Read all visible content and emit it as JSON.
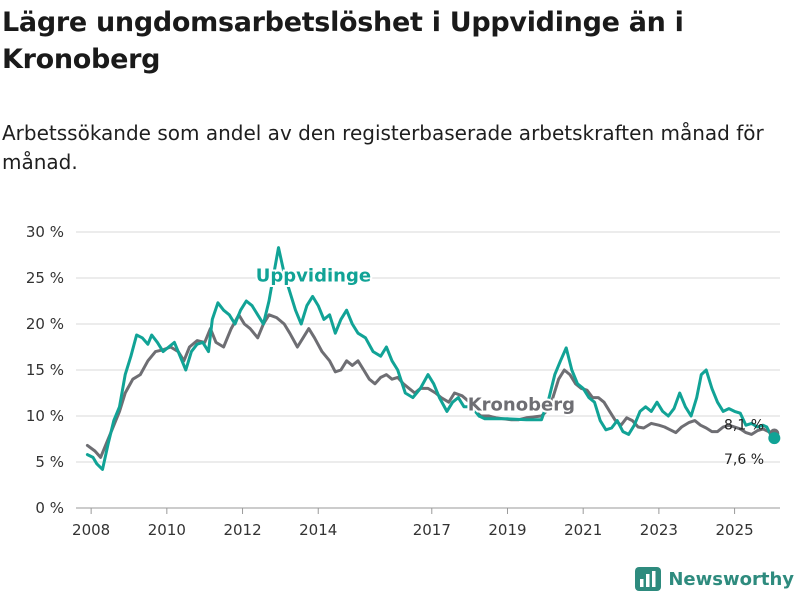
{
  "header": {
    "title": "Lägre ungdomsarbetslöshet i Uppvidinge än i Kronoberg",
    "subtitle": "Arbetssökande som andel av den registerbaserade arbetskraften månad för månad."
  },
  "brand": {
    "name": "Newsworthy",
    "icon": "bar-chart-logo-icon",
    "color": "#2e8b7e"
  },
  "chart_data": {
    "type": "line",
    "title": "Lägre ungdomsarbetslöshet i Uppvidinge än i Kronoberg",
    "subtitle": "Arbetssökande som andel av den registerbaserade arbetskraften månad för månad.",
    "xlabel": "",
    "ylabel": "",
    "ylim": [
      0,
      30
    ],
    "xlim": [
      2007.6,
      2026.2
    ],
    "grid": true,
    "y_ticks": [
      0,
      5,
      10,
      15,
      20,
      25,
      30
    ],
    "y_tick_labels": [
      "0 %",
      "5 %",
      "10 %",
      "15 %",
      "20 %",
      "25 %",
      "30 %"
    ],
    "x_ticks": [
      2008,
      2010,
      2012,
      2014,
      2017,
      2019,
      2021,
      2023,
      2025
    ],
    "x_tick_labels": [
      "2008",
      "2010",
      "2012",
      "2014",
      "2017",
      "2019",
      "2021",
      "2023",
      "2025"
    ],
    "series": [
      {
        "name": "Kronoberg",
        "color": "#6e6e73",
        "label": "Kronoberg",
        "end_label": "8,1 %",
        "points": [
          [
            2007.9,
            6.8
          ],
          [
            2008.1,
            6.2
          ],
          [
            2008.25,
            5.5
          ],
          [
            2008.4,
            7.0
          ],
          [
            2008.55,
            8.5
          ],
          [
            2008.75,
            10.5
          ],
          [
            2008.9,
            12.5
          ],
          [
            2009.1,
            14.0
          ],
          [
            2009.3,
            14.5
          ],
          [
            2009.5,
            16.0
          ],
          [
            2009.7,
            17.0
          ],
          [
            2009.9,
            17.2
          ],
          [
            2010.1,
            17.5
          ],
          [
            2010.3,
            17.0
          ],
          [
            2010.45,
            16.0
          ],
          [
            2010.6,
            17.5
          ],
          [
            2010.8,
            18.2
          ],
          [
            2011.0,
            18.0
          ],
          [
            2011.15,
            19.5
          ],
          [
            2011.3,
            18.0
          ],
          [
            2011.5,
            17.5
          ],
          [
            2011.7,
            19.5
          ],
          [
            2011.9,
            21.0
          ],
          [
            2012.05,
            20.0
          ],
          [
            2012.2,
            19.5
          ],
          [
            2012.4,
            18.5
          ],
          [
            2012.55,
            20.0
          ],
          [
            2012.7,
            21.0
          ],
          [
            2012.9,
            20.7
          ],
          [
            2013.1,
            20.0
          ],
          [
            2013.25,
            19.0
          ],
          [
            2013.45,
            17.5
          ],
          [
            2013.6,
            18.5
          ],
          [
            2013.75,
            19.5
          ],
          [
            2013.9,
            18.5
          ],
          [
            2014.1,
            17.0
          ],
          [
            2014.3,
            16.0
          ],
          [
            2014.45,
            14.8
          ],
          [
            2014.6,
            15.0
          ],
          [
            2014.75,
            16.0
          ],
          [
            2014.9,
            15.5
          ],
          [
            2015.05,
            16.0
          ],
          [
            2015.2,
            15.0
          ],
          [
            2015.35,
            14.0
          ],
          [
            2015.5,
            13.5
          ],
          [
            2015.65,
            14.2
          ],
          [
            2015.8,
            14.5
          ],
          [
            2015.95,
            14.0
          ],
          [
            2016.1,
            14.2
          ],
          [
            2016.25,
            13.5
          ],
          [
            2016.4,
            13.0
          ],
          [
            2016.55,
            12.5
          ],
          [
            2016.7,
            13.0
          ],
          [
            2016.9,
            13.0
          ],
          [
            2017.1,
            12.5
          ],
          [
            2017.25,
            12.0
          ],
          [
            2017.45,
            11.5
          ],
          [
            2017.6,
            12.5
          ],
          [
            2017.8,
            12.2
          ],
          [
            2018.0,
            11.5
          ],
          [
            2018.15,
            10.5
          ],
          [
            2018.3,
            10.0
          ],
          [
            2018.5,
            10.0
          ],
          [
            2018.7,
            9.8
          ],
          [
            2018.9,
            9.7
          ],
          [
            2019.1,
            9.6
          ],
          [
            2019.3,
            9.6
          ],
          [
            2019.5,
            9.8
          ],
          [
            2019.7,
            9.9
          ],
          [
            2019.9,
            10.0
          ],
          [
            2020.05,
            10.6
          ],
          [
            2020.2,
            12.0
          ],
          [
            2020.35,
            14.0
          ],
          [
            2020.5,
            15.0
          ],
          [
            2020.65,
            14.5
          ],
          [
            2020.8,
            13.5
          ],
          [
            2020.95,
            13.0
          ],
          [
            2021.1,
            12.8
          ],
          [
            2021.25,
            12.0
          ],
          [
            2021.4,
            12.0
          ],
          [
            2021.55,
            11.5
          ],
          [
            2021.7,
            10.5
          ],
          [
            2021.85,
            9.5
          ],
          [
            2022.0,
            9.0
          ],
          [
            2022.15,
            9.8
          ],
          [
            2022.3,
            9.5
          ],
          [
            2022.45,
            8.8
          ],
          [
            2022.6,
            8.7
          ],
          [
            2022.8,
            9.2
          ],
          [
            2023.0,
            9.0
          ],
          [
            2023.15,
            8.8
          ],
          [
            2023.3,
            8.5
          ],
          [
            2023.45,
            8.2
          ],
          [
            2023.6,
            8.8
          ],
          [
            2023.8,
            9.3
          ],
          [
            2023.95,
            9.5
          ],
          [
            2024.1,
            9.0
          ],
          [
            2024.25,
            8.7
          ],
          [
            2024.4,
            8.3
          ],
          [
            2024.55,
            8.3
          ],
          [
            2024.7,
            8.8
          ],
          [
            2024.85,
            9.0
          ],
          [
            2025.0,
            8.8
          ],
          [
            2025.15,
            8.6
          ],
          [
            2025.3,
            8.2
          ],
          [
            2025.45,
            8.0
          ],
          [
            2025.6,
            8.4
          ],
          [
            2025.75,
            8.6
          ],
          [
            2025.9,
            8.3
          ],
          [
            2026.05,
            8.1
          ]
        ]
      },
      {
        "name": "Uppvidinge",
        "color": "#11a396",
        "label": "Uppvidinge",
        "end_label": "7,6 %",
        "points": [
          [
            2007.9,
            5.8
          ],
          [
            2008.05,
            5.5
          ],
          [
            2008.15,
            4.8
          ],
          [
            2008.3,
            4.2
          ],
          [
            2008.45,
            7.0
          ],
          [
            2008.6,
            9.5
          ],
          [
            2008.75,
            11.0
          ],
          [
            2008.9,
            14.5
          ],
          [
            2009.05,
            16.5
          ],
          [
            2009.2,
            18.8
          ],
          [
            2009.35,
            18.5
          ],
          [
            2009.5,
            17.8
          ],
          [
            2009.6,
            18.8
          ],
          [
            2009.75,
            18.0
          ],
          [
            2009.9,
            17.0
          ],
          [
            2010.05,
            17.5
          ],
          [
            2010.2,
            18.0
          ],
          [
            2010.35,
            16.5
          ],
          [
            2010.5,
            15.0
          ],
          [
            2010.65,
            17.0
          ],
          [
            2010.8,
            17.8
          ],
          [
            2010.95,
            18.0
          ],
          [
            2011.1,
            17.0
          ],
          [
            2011.2,
            20.5
          ],
          [
            2011.35,
            22.3
          ],
          [
            2011.5,
            21.5
          ],
          [
            2011.65,
            21.0
          ],
          [
            2011.8,
            20.0
          ],
          [
            2011.95,
            21.5
          ],
          [
            2012.1,
            22.5
          ],
          [
            2012.25,
            22.0
          ],
          [
            2012.4,
            21.0
          ],
          [
            2012.55,
            20.0
          ],
          [
            2012.7,
            22.5
          ],
          [
            2012.85,
            26.0
          ],
          [
            2012.95,
            28.3
          ],
          [
            2013.1,
            25.5
          ],
          [
            2013.25,
            23.5
          ],
          [
            2013.4,
            21.5
          ],
          [
            2013.55,
            20.0
          ],
          [
            2013.7,
            22.0
          ],
          [
            2013.85,
            23.0
          ],
          [
            2014.0,
            22.0
          ],
          [
            2014.15,
            20.5
          ],
          [
            2014.3,
            21.0
          ],
          [
            2014.45,
            19.0
          ],
          [
            2014.6,
            20.5
          ],
          [
            2014.75,
            21.5
          ],
          [
            2014.9,
            20.0
          ],
          [
            2015.05,
            19.0
          ],
          [
            2015.25,
            18.5
          ],
          [
            2015.45,
            17.0
          ],
          [
            2015.65,
            16.5
          ],
          [
            2015.8,
            17.5
          ],
          [
            2015.95,
            16.0
          ],
          [
            2016.1,
            15.0
          ],
          [
            2016.3,
            12.5
          ],
          [
            2016.5,
            12.0
          ],
          [
            2016.7,
            13.0
          ],
          [
            2016.9,
            14.5
          ],
          [
            2017.05,
            13.5
          ],
          [
            2017.2,
            12.0
          ],
          [
            2017.4,
            10.5
          ],
          [
            2017.55,
            11.5
          ],
          [
            2017.7,
            12.0
          ],
          [
            2017.85,
            11.0
          ],
          [
            2018.05,
            11.0
          ],
          [
            2018.25,
            10.0
          ]
        ]
      }
    ]
  }
}
